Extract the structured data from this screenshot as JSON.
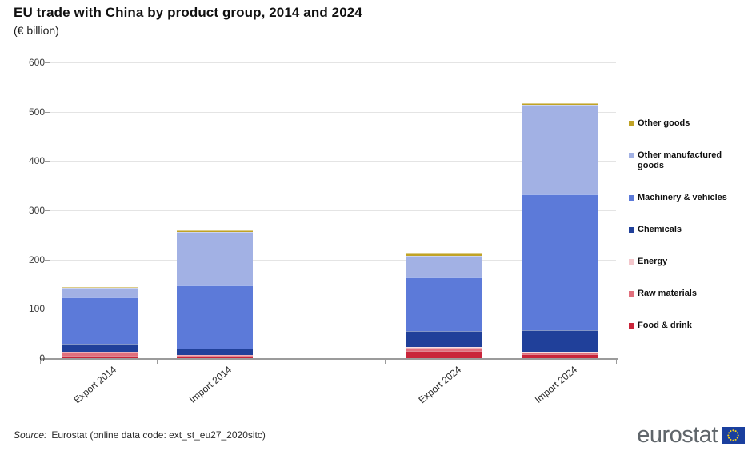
{
  "header": {
    "title": "EU trade with China by product group, 2014 and 2024",
    "subtitle": "(€ billion)"
  },
  "chart_data": {
    "type": "bar",
    "stacked": true,
    "title": "EU trade with China by product group, 2014 and 2024",
    "subtitle": "(€ billion)",
    "categories": [
      "Export 2014",
      "Import 2014",
      "Export 2024",
      "Import 2024"
    ],
    "series": [
      {
        "name": "Food & drink",
        "color": "#c9253a",
        "values": [
          5.1,
          4.3,
          14.1,
          7.5
        ]
      },
      {
        "name": "Raw materials",
        "color": "#e1707d",
        "values": [
          7.4,
          2.3,
          6.3,
          3.1
        ]
      },
      {
        "name": "Energy",
        "color": "#f3c6cb",
        "values": [
          1.0,
          0.4,
          2.3,
          1.6
        ]
      },
      {
        "name": "Chemicals",
        "color": "#20409a",
        "values": [
          16.5,
          12.5,
          33.3,
          43.8
        ]
      },
      {
        "name": "Machinery & vehicles",
        "color": "#5c7ad9",
        "values": [
          92.8,
          128.6,
          107.7,
          275.9
        ]
      },
      {
        "name": "Other manufactured goods",
        "color": "#a2b1e4",
        "values": [
          19.9,
          108.6,
          44.2,
          181.6
        ]
      },
      {
        "name": "Other goods",
        "color": "#c0a326",
        "values": [
          2.0,
          3.0,
          5.4,
          4.3
        ]
      }
    ],
    "totals": [
      144.7,
      259.7,
      213.3,
      517.8
    ],
    "ylim": [
      0,
      600
    ],
    "yticks": [
      0,
      100,
      200,
      300,
      400,
      500,
      600
    ],
    "grid": true,
    "legend_position": "right",
    "legend_order_top_to_bottom": [
      "Other goods",
      "Other manufactured goods",
      "Machinery & vehicles",
      "Chemicals",
      "Energy",
      "Raw materials",
      "Food & drink"
    ]
  },
  "footer": {
    "source_prefix": "Source:",
    "source_text": "Eurostat (online data code: ext_st_eu27_2020sitc)"
  },
  "logo": {
    "text": "eurostat"
  },
  "colors": {
    "gridline": "#e4e4e4",
    "axis": "#9b9b9b",
    "flag_blue": "#1a3f9e",
    "flag_stars": "#ffd617"
  }
}
